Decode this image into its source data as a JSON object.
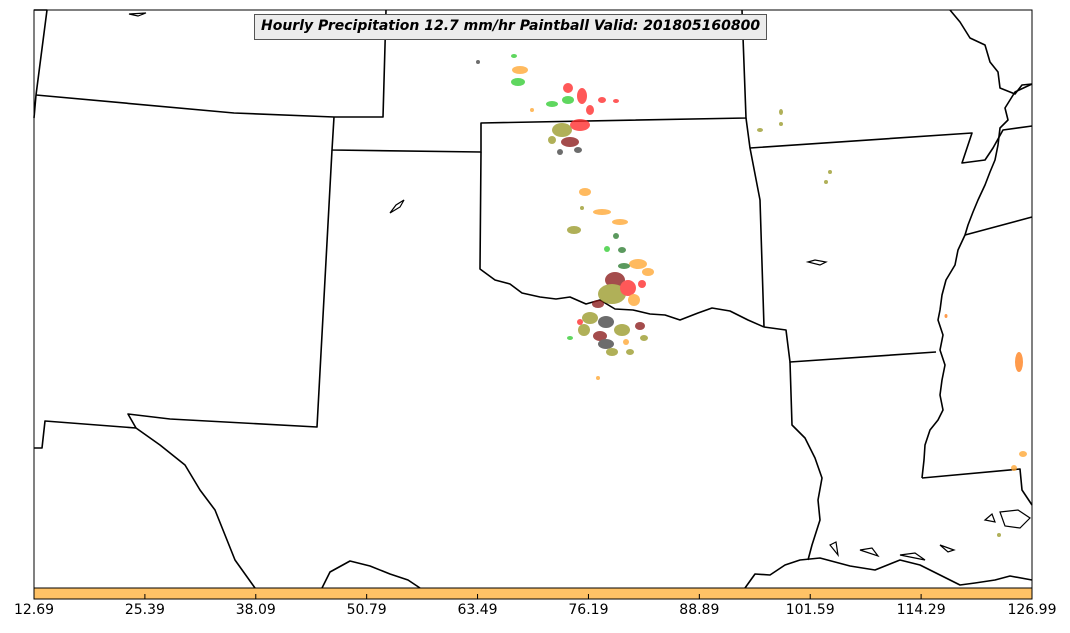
{
  "map": {
    "title": "Hourly Precipitation 12.7 mm/hr Paintball Valid: 201805160800",
    "colorbar": {
      "fill_color": "#ffc266",
      "ticks": [
        "12.69",
        "25.39",
        "38.09",
        "50.79",
        "63.49",
        "76.19",
        "88.89",
        "101.59",
        "114.29",
        "126.99"
      ]
    },
    "colors": {
      "border": "#000000",
      "red": "#ff2a2a",
      "green": "#33cc33",
      "orange": "#ffa733",
      "olive": "#9a9a2a",
      "darkred": "#8b1a1a",
      "darkgreen": "#2e7d32",
      "gray": "#444444"
    }
  }
}
